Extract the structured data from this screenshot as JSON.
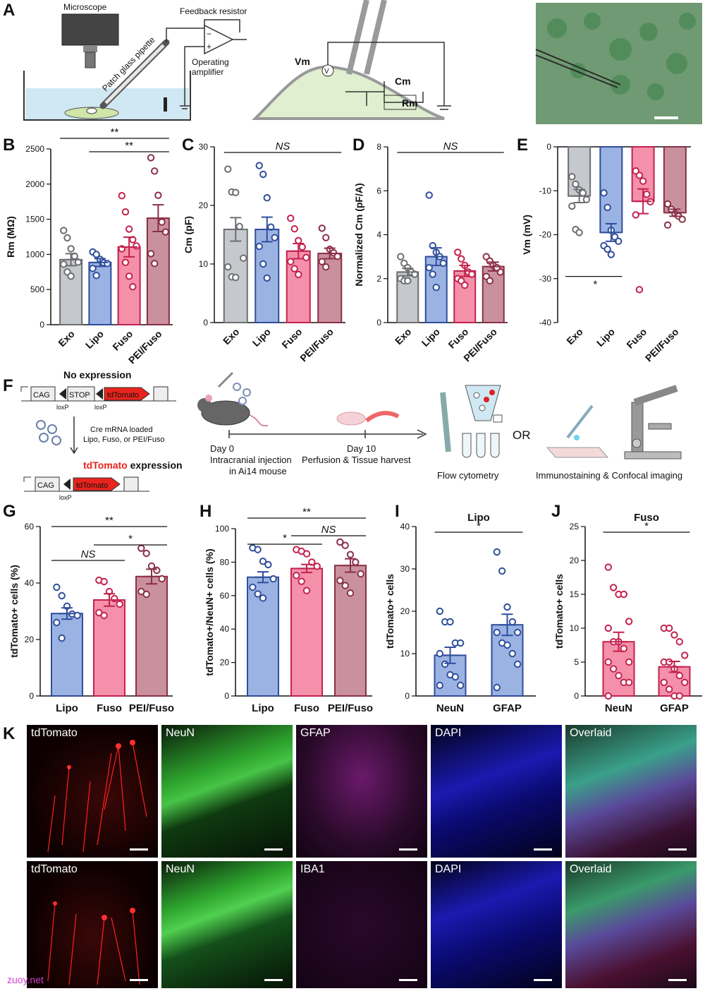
{
  "panels": {
    "A": "A",
    "B": "B",
    "C": "C",
    "D": "D",
    "E": "E",
    "F": "F",
    "G": "G",
    "H": "H",
    "I": "I",
    "J": "J",
    "K": "K"
  },
  "schematicA": {
    "microscope": "Microscope",
    "pipette": "Patch glass pipette",
    "resistor": "Feedback resistor",
    "amplifier_l1": "Operating",
    "amplifier_l2": "amplifier",
    "vm": "Vm",
    "cm": "Cm",
    "rm": "Rm",
    "minus": "−",
    "plus": "+",
    "v": "V"
  },
  "schematicF": {
    "no_expression": "No expression",
    "cag": "CAG",
    "stop": "STOP",
    "tdtomato": "tdTomato",
    "loxp": "loxP",
    "cre_l1": "Cre mRNA loaded",
    "cre_l2": "Lipo, Fuso, or PEI/Fuso",
    "expr_red": "tdTomato",
    "expr_black": " expression",
    "day0": "Day 0",
    "day0_l1": "Intracranial injection",
    "day0_l2": "in Ai14 mouse",
    "day10": "Day 10",
    "day10_l1": "Perfusion & Tissue harvest",
    "flow": "Flow cytometry",
    "or": "OR",
    "imaging": "Immunostaining & Confocal imaging"
  },
  "colors": {
    "Exo": "#c5c8cc",
    "Exo_dot": "#6d6e70",
    "Lipo": "#9bb3e3",
    "Lipo_dot": "#2f4e9c",
    "Fuso": "#f590aa",
    "Fuso_dot": "#c3224e",
    "PEI/Fuso": "#c9919d",
    "PEI/Fuso_dot": "#8a2f48",
    "NeuN": "#f590aa",
    "GFAP": "#f590aa"
  },
  "chart_data": [
    {
      "id": "B",
      "type": "bar",
      "categories": [
        "Exo",
        "Lipo",
        "Fuso",
        "PEI/Fuso"
      ],
      "values": [
        925,
        885,
        1105,
        1515
      ],
      "sem": [
        85,
        55,
        140,
        190
      ],
      "points": [
        [
          1340,
          1235,
          1080,
          975,
          890,
          860,
          750,
          690
        ],
        [
          1035,
          1000,
          930,
          880,
          870,
          800,
          700
        ],
        [
          1835,
          1605,
          1360,
          1210,
          1120,
          1080,
          885,
          690,
          540
        ],
        [
          2375,
          2185,
          1840,
          1460,
          1320,
          1010,
          870
        ]
      ],
      "ylabel": "Rm (MΩ)",
      "ylim": [
        0,
        2500
      ],
      "yticks": [
        "0",
        "500",
        "1000",
        "1500",
        "2000",
        "2500"
      ],
      "sig": [
        {
          "from": 0,
          "to": 3,
          "label": "**"
        },
        {
          "from": 1,
          "to": 3,
          "label": "**"
        }
      ]
    },
    {
      "id": "C",
      "type": "bar",
      "categories": [
        "Exo",
        "Lipo",
        "Fuso",
        "PEI/Fuso"
      ],
      "values": [
        15.9,
        15.9,
        12.2,
        11.8
      ],
      "sem": [
        2.0,
        2.1,
        1.3,
        0.9
      ],
      "points": [
        [
          26.2,
          22.3,
          22.2,
          16.4,
          11.0,
          9.5,
          7.8,
          7.7
        ],
        [
          26.8,
          25.3,
          21.3,
          16.3,
          14.5,
          13.0,
          10.0,
          7.6
        ],
        [
          17.8,
          16.0,
          14.0,
          12.9,
          11.1,
          10.4,
          9.2,
          8.2
        ],
        [
          16.1,
          14.5,
          12.5,
          11.9,
          11.3,
          10.4,
          9.5
        ]
      ],
      "ylabel": "Cm (pF)",
      "ylim": [
        0,
        30
      ],
      "yticks": [
        "0",
        "10",
        "20",
        "30"
      ],
      "sig": [
        {
          "from": 0,
          "to": 3,
          "label": "NS"
        }
      ]
    },
    {
      "id": "D",
      "type": "bar",
      "categories": [
        "Exo",
        "Lipo",
        "Fuso",
        "PEI/Fuso"
      ],
      "values": [
        2.3,
        3.0,
        2.35,
        2.55
      ],
      "sem": [
        0.17,
        0.4,
        0.25,
        0.2
      ],
      "points": [
        [
          3.0,
          2.7,
          2.5,
          2.3,
          2.2,
          2.0,
          1.9,
          1.9
        ],
        [
          5.8,
          3.5,
          3.2,
          3.0,
          2.7,
          2.5,
          2.2,
          1.6
        ],
        [
          3.2,
          2.9,
          2.6,
          2.3,
          2.2,
          2.0,
          1.9,
          1.7
        ],
        [
          3.0,
          2.8,
          2.6,
          2.5,
          2.3,
          2.1,
          1.9
        ]
      ],
      "ylabel": "Normalized Cm (pF/A)",
      "ylim": [
        0,
        8
      ],
      "yticks": [
        "0",
        "2",
        "4",
        "6",
        "8"
      ],
      "sig": [
        {
          "from": 0,
          "to": 3,
          "label": "NS"
        }
      ]
    },
    {
      "id": "E",
      "type": "bar",
      "categories": [
        "Exo",
        "Lipo",
        "Fuso",
        "PEI/Fuso"
      ],
      "values": [
        -11.2,
        -19.5,
        -12.4,
        -15.0
      ],
      "sem": [
        1.5,
        2.0,
        2.8,
        0.8
      ],
      "points": [
        [
          -6.8,
          -8.5,
          -9.8,
          -10.5,
          -12.0,
          -13.5,
          -18.8,
          -19.5
        ],
        [
          -10.5,
          -13.8,
          -19.0,
          -20.5,
          -21.5,
          -22.5,
          -23.3,
          -24.5
        ],
        [
          -5.5,
          -6.5,
          -7.8,
          -10.8,
          -12.5,
          -15.5,
          -32.5
        ],
        [
          -13.0,
          -14.2,
          -15.2,
          -15.8,
          -16.5,
          -17.8
        ]
      ],
      "ylabel": "Vm (mV)",
      "ylim": [
        -40,
        0
      ],
      "yticks": [
        "0",
        "-10",
        "-20",
        "-30",
        "-40"
      ],
      "sig": [
        {
          "from": 0,
          "to": 1,
          "label": "*",
          "below": true
        }
      ]
    },
    {
      "id": "G",
      "type": "bar",
      "categories": [
        "Lipo",
        "Fuso",
        "PEI/Fuso"
      ],
      "values": [
        29.2,
        34.0,
        42.3
      ],
      "sem": [
        2.0,
        2.2,
        2.6
      ],
      "points": [
        [
          38.5,
          35.5,
          31.8,
          29.0,
          28.5,
          26.0,
          20.5
        ],
        [
          41.0,
          40.5,
          37.0,
          34.5,
          32.5,
          29.5,
          28.5
        ],
        [
          52.3,
          50.5,
          46.0,
          44.5,
          41.5,
          37.0,
          36.0
        ]
      ],
      "ylabel": "tdTomato+ cells (%)",
      "ylim": [
        0,
        60
      ],
      "yticks": [
        "0",
        "20",
        "40",
        "60"
      ],
      "sig": [
        {
          "from": 0,
          "to": 2,
          "label": "**"
        },
        {
          "from": 1,
          "to": 2,
          "label": "*"
        },
        {
          "from": 0,
          "to": 1,
          "label": "NS"
        }
      ]
    },
    {
      "id": "H",
      "type": "bar",
      "categories": [
        "Lipo",
        "Fuso",
        "PEI/Fuso"
      ],
      "values": [
        71.0,
        76.2,
        78.0
      ],
      "sem": [
        3.2,
        2.4,
        4.0
      ],
      "points": [
        [
          88.5,
          87.5,
          80.5,
          78.5,
          70.0,
          65.0,
          61.0,
          58.5
        ],
        [
          87.5,
          86.5,
          85.0,
          80.0,
          77.5,
          72.0,
          68.5,
          63.0
        ],
        [
          92.0,
          90.0,
          84.5,
          80.0,
          73.0,
          69.0,
          66.0,
          61.5
        ]
      ],
      "ylabel": "tdTomato+/NeuN+ cells (%)",
      "ylim": [
        0,
        100
      ],
      "yticks": [
        "0",
        "20",
        "40",
        "60",
        "80",
        "100"
      ],
      "sig": [
        {
          "from": 0,
          "to": 2,
          "label": "**"
        },
        {
          "from": 1,
          "to": 2,
          "label": "NS"
        },
        {
          "from": 0,
          "to": 1,
          "label": "*"
        }
      ]
    },
    {
      "id": "I",
      "type": "bar",
      "title": "Lipo",
      "categories": [
        "NeuN",
        "GFAP"
      ],
      "values": [
        9.6,
        16.8
      ],
      "sem": [
        1.9,
        2.5
      ],
      "points": [
        [
          20.0,
          17.5,
          17.5,
          12.5,
          12.5,
          10.0,
          7.5,
          5.0,
          4.5,
          2.5,
          2.5
        ],
        [
          34.0,
          29.5,
          21.0,
          17.5,
          15.0,
          15.0,
          12.5,
          12.0,
          10.0,
          7.5,
          2.0
        ]
      ],
      "ylabel": "tdTomato+ cells",
      "ylim": [
        0,
        40
      ],
      "yticks": [
        "0",
        "10",
        "20",
        "30",
        "40"
      ],
      "sig": [
        {
          "from": 0,
          "to": 1,
          "label": "*"
        }
      ]
    },
    {
      "id": "J",
      "type": "bar",
      "title": "Fuso",
      "categories": [
        "NeuN",
        "GFAP"
      ],
      "values": [
        8.0,
        4.3
      ],
      "sem": [
        1.4,
        0.8
      ],
      "points": [
        [
          19.0,
          16.0,
          15.0,
          15.0,
          11.0,
          10.0,
          8.0,
          8.0,
          7.0,
          5.0,
          5.0,
          4.0,
          3.0,
          2.0,
          2.0,
          0.0
        ],
        [
          10.0,
          10.0,
          9.0,
          8.0,
          6.0,
          5.0,
          5.0,
          4.0,
          3.0,
          2.0,
          2.0,
          1.0,
          0.0,
          0.0
        ]
      ],
      "ylabel": "tdTomato+ cells",
      "ylim": [
        0,
        25
      ],
      "yticks": [
        "0",
        "5",
        "10",
        "15",
        "20",
        "25"
      ],
      "sig": [
        {
          "from": 0,
          "to": 1,
          "label": "*"
        }
      ]
    }
  ],
  "micrographs": {
    "row1": [
      "tdTomato",
      "NeuN",
      "GFAP",
      "DAPI",
      "Overlaid"
    ],
    "row2": [
      "tdTomato",
      "NeuN",
      "IBA1",
      "DAPI",
      "Overlaid"
    ]
  },
  "watermark": "zuoy.net"
}
